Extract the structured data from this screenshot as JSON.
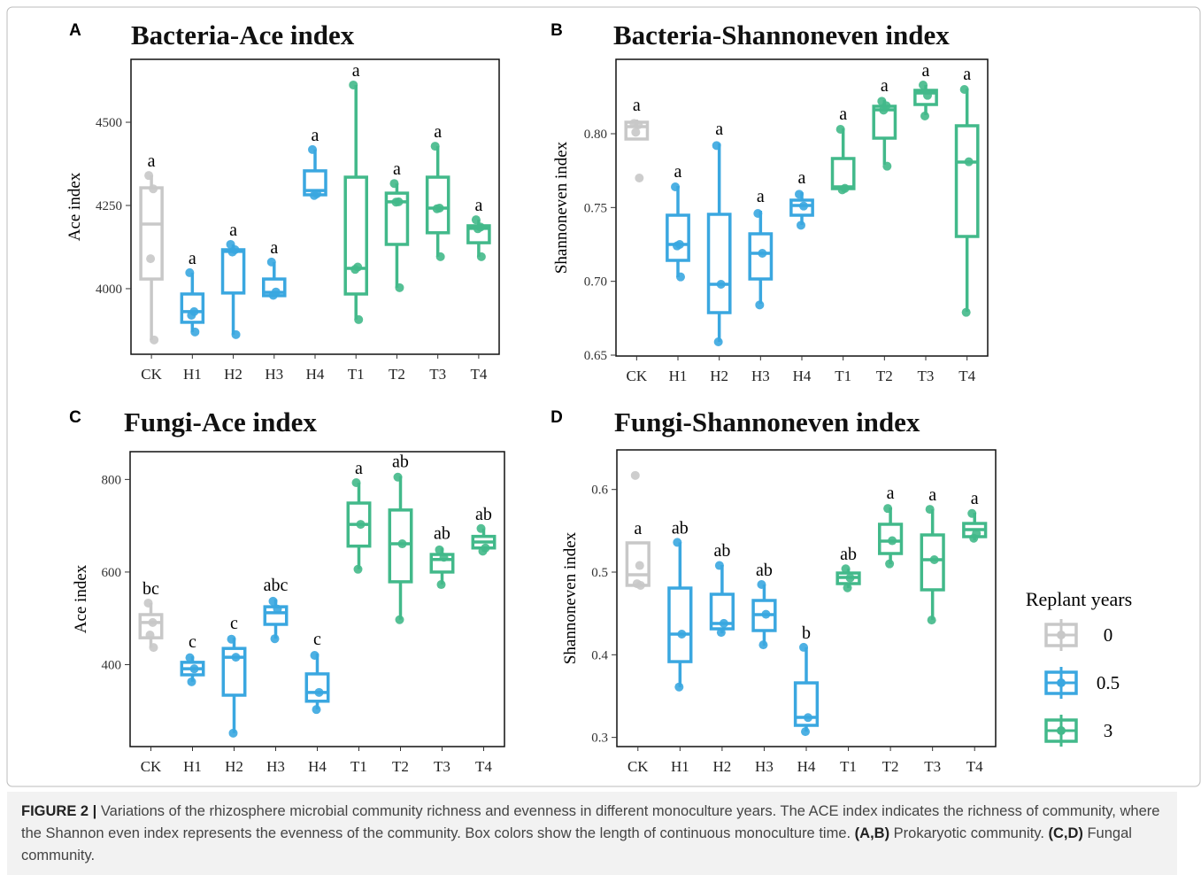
{
  "chart_data": [
    {
      "type": "box",
      "panel_label": "A",
      "title": "Bacteria-Ace index",
      "ylabel": "Ace index",
      "categories": [
        "CK",
        "H1",
        "H2",
        "H3",
        "H4",
        "T1",
        "T2",
        "T3",
        "T4"
      ],
      "colors": [
        "#c8c8c8",
        "#3aa7e0",
        "#3aa7e0",
        "#3aa7e0",
        "#3aa7e0",
        "#42b98a",
        "#42b98a",
        "#42b98a",
        "#42b98a"
      ],
      "boxes": [
        {
          "min": 3846,
          "q1": 4029,
          "median": 4194,
          "q3": 4303,
          "max": 4340,
          "points": [
            4340,
            4300,
            4090,
            3846
          ],
          "letter": "a"
        },
        {
          "min": 3870,
          "q1": 3899,
          "median": 3931,
          "q3": 3984,
          "max": 4048,
          "points": [
            4048,
            3931,
            3920,
            3870
          ],
          "letter": "a"
        },
        {
          "min": 3862,
          "q1": 3987,
          "median": 4112,
          "q3": 4117,
          "max": 4133,
          "points": [
            4133,
            4117,
            4110,
            3862
          ],
          "letter": "a"
        },
        {
          "min": 3979,
          "q1": 3979,
          "median": 3989,
          "q3": 4029,
          "max": 4080,
          "points": [
            4080,
            3990,
            3980
          ],
          "letter": "a"
        },
        {
          "min": 4282,
          "q1": 4282,
          "median": 4295,
          "q3": 4354,
          "max": 4418,
          "points": [
            4418,
            4285,
            4280
          ],
          "letter": "a"
        },
        {
          "min": 3907,
          "q1": 3984,
          "median": 4061,
          "q3": 4335,
          "max": 4612,
          "points": [
            4612,
            4065,
            4058,
            3907
          ],
          "letter": "a"
        },
        {
          "min": 4003,
          "q1": 4133,
          "median": 4261,
          "q3": 4287,
          "max": 4316,
          "points": [
            4316,
            4261,
            4260,
            4003
          ],
          "letter": "a"
        },
        {
          "min": 4096,
          "q1": 4168,
          "median": 4242,
          "q3": 4335,
          "max": 4428,
          "points": [
            4428,
            4242,
            4240,
            4096
          ],
          "letter": "a"
        },
        {
          "min": 4096,
          "q1": 4138,
          "median": 4181,
          "q3": 4189,
          "max": 4207,
          "points": [
            4207,
            4185,
            4180,
            4096
          ],
          "letter": "a"
        }
      ],
      "ylim": [
        3803,
        4689
      ],
      "yticks": [
        4000,
        4250,
        4500
      ]
    },
    {
      "type": "box",
      "panel_label": "B",
      "title": "Bacteria-Shannoneven index",
      "ylabel": "Shannoneven index",
      "categories": [
        "CK",
        "H1",
        "H2",
        "H3",
        "H4",
        "T1",
        "T2",
        "T3",
        "T4"
      ],
      "colors": [
        "#c8c8c8",
        "#3aa7e0",
        "#3aa7e0",
        "#3aa7e0",
        "#3aa7e0",
        "#42b98a",
        "#42b98a",
        "#42b98a",
        "#42b98a"
      ],
      "boxes": [
        {
          "min": 0.7964,
          "q1": 0.7964,
          "median": 0.8048,
          "q3": 0.8078,
          "max": 0.8096,
          "points": [
            0.807,
            0.806,
            0.801,
            0.77
          ],
          "letter": "a"
        },
        {
          "min": 0.7028,
          "q1": 0.7142,
          "median": 0.725,
          "q3": 0.7448,
          "max": 0.7646,
          "points": [
            0.764,
            0.725,
            0.724,
            0.703
          ],
          "letter": "a"
        },
        {
          "min": 0.659,
          "q1": 0.6788,
          "median": 0.698,
          "q3": 0.7454,
          "max": 0.7934,
          "points": [
            0.792,
            0.698,
            0.659
          ],
          "letter": "a"
        },
        {
          "min": 0.6848,
          "q1": 0.7016,
          "median": 0.719,
          "q3": 0.7322,
          "max": 0.7478,
          "points": [
            0.746,
            0.719,
            0.684
          ],
          "letter": "a"
        },
        {
          "min": 0.7382,
          "q1": 0.7448,
          "median": 0.7514,
          "q3": 0.755,
          "max": 0.7604,
          "points": [
            0.759,
            0.751,
            0.738
          ],
          "letter": "a"
        },
        {
          "min": 0.7628,
          "q1": 0.7628,
          "median": 0.764,
          "q3": 0.7832,
          "max": 0.8036,
          "points": [
            0.803,
            0.763,
            0.762
          ],
          "letter": "a"
        },
        {
          "min": 0.779,
          "q1": 0.797,
          "median": 0.8162,
          "q3": 0.8186,
          "max": 0.8228,
          "points": [
            0.822,
            0.819,
            0.816,
            0.778
          ],
          "letter": "a"
        },
        {
          "min": 0.8126,
          "q1": 0.8198,
          "median": 0.8276,
          "q3": 0.8294,
          "max": 0.833,
          "points": [
            0.833,
            0.826,
            0.812
          ],
          "letter": "a"
        },
        {
          "min": 0.6794,
          "q1": 0.7304,
          "median": 0.7808,
          "q3": 0.8054,
          "max": 0.8306,
          "points": [
            0.83,
            0.781,
            0.679
          ],
          "letter": "a"
        }
      ],
      "ylim": [
        0.6494,
        0.8504
      ],
      "yticks": [
        {
          "value": 0.65,
          "label": "0.65"
        },
        {
          "value": 0.7,
          "label": "0.70"
        },
        {
          "value": 0.75,
          "label": "0.75"
        },
        {
          "value": 0.8,
          "label": "0.80"
        }
      ]
    },
    {
      "type": "box",
      "panel_label": "C",
      "title": "Fungi-Ace index",
      "ylabel": "Ace index",
      "categories": [
        "CK",
        "H1",
        "H2",
        "H3",
        "H4",
        "T1",
        "T2",
        "T3",
        "T4"
      ],
      "colors": [
        "#c8c8c8",
        "#3aa7e0",
        "#3aa7e0",
        "#3aa7e0",
        "#3aa7e0",
        "#42b98a",
        "#42b98a",
        "#42b98a",
        "#42b98a"
      ],
      "boxes": [
        {
          "min": 437,
          "q1": 458,
          "median": 491,
          "q3": 508,
          "max": 533,
          "points": [
            533,
            491,
            464,
            437
          ],
          "letter": "bc"
        },
        {
          "min": 363,
          "q1": 378,
          "median": 391,
          "q3": 405,
          "max": 418,
          "points": [
            415,
            391,
            363
          ],
          "letter": "c"
        },
        {
          "min": 252,
          "q1": 334,
          "median": 416,
          "q3": 435,
          "max": 458,
          "points": [
            455,
            416,
            252
          ],
          "letter": "c"
        },
        {
          "min": 456,
          "q1": 487,
          "median": 512,
          "q3": 525,
          "max": 541,
          "points": [
            537,
            520,
            456
          ],
          "letter": "abc"
        },
        {
          "min": 303,
          "q1": 321,
          "median": 340,
          "q3": 380,
          "max": 424,
          "points": [
            420,
            340,
            303
          ],
          "letter": "c"
        },
        {
          "min": 606,
          "q1": 656,
          "median": 703,
          "q3": 749,
          "max": 793,
          "points": [
            793,
            703,
            606
          ],
          "letter": "a"
        },
        {
          "min": 497,
          "q1": 579,
          "median": 661,
          "q3": 734,
          "max": 807,
          "points": [
            805,
            661,
            497
          ],
          "letter": "ab"
        },
        {
          "min": 573,
          "q1": 600,
          "median": 627,
          "q3": 638,
          "max": 652,
          "points": [
            648,
            632,
            573
          ],
          "letter": "ab"
        },
        {
          "min": 644,
          "q1": 652,
          "median": 665,
          "q3": 677,
          "max": 694,
          "points": [
            694,
            652,
            645
          ],
          "letter": "ab"
        }
      ],
      "ylim": [
        223,
        860
      ],
      "yticks": [
        400,
        600,
        800
      ]
    },
    {
      "type": "box",
      "panel_label": "D",
      "title": "Fungi-Shannoneven index",
      "ylabel": "Shannoneven index",
      "categories": [
        "CK",
        "H1",
        "H2",
        "H3",
        "H4",
        "T1",
        "T2",
        "T3",
        "T4"
      ],
      "colors": [
        "#c8c8c8",
        "#3aa7e0",
        "#3aa7e0",
        "#3aa7e0",
        "#3aa7e0",
        "#42b98a",
        "#42b98a",
        "#42b98a",
        "#42b98a"
      ],
      "boxes": [
        {
          "min": 0.484,
          "q1": 0.484,
          "median": 0.4968,
          "q3": 0.5354,
          "max": 0.5354,
          "points": [
            0.617,
            0.508,
            0.486,
            0.484
          ],
          "letter": "a"
        },
        {
          "min": 0.3607,
          "q1": 0.3917,
          "median": 0.425,
          "q3": 0.4807,
          "max": 0.536,
          "points": [
            0.536,
            0.425,
            0.361
          ],
          "letter": "ab"
        },
        {
          "min": 0.426,
          "q1": 0.4314,
          "median": 0.4378,
          "q3": 0.4732,
          "max": 0.5086,
          "points": [
            0.508,
            0.438,
            0.427
          ],
          "letter": "ab"
        },
        {
          "min": 0.411,
          "q1": 0.4293,
          "median": 0.4486,
          "q3": 0.4657,
          "max": 0.485,
          "points": [
            0.485,
            0.449,
            0.412
          ],
          "letter": "ab"
        },
        {
          "min": 0.3071,
          "q1": 0.3146,
          "median": 0.3242,
          "q3": 0.366,
          "max": 0.4089,
          "points": [
            0.409,
            0.324,
            0.307
          ],
          "letter": "b"
        },
        {
          "min": 0.4807,
          "q1": 0.4861,
          "median": 0.4936,
          "q3": 0.4989,
          "max": 0.5043,
          "points": [
            0.504,
            0.493,
            0.481
          ],
          "letter": "ab"
        },
        {
          "min": 0.5096,
          "q1": 0.5225,
          "median": 0.5375,
          "q3": 0.5579,
          "max": 0.5782,
          "points": [
            0.577,
            0.538,
            0.51
          ],
          "letter": "a"
        },
        {
          "min": 0.4421,
          "q1": 0.4786,
          "median": 0.515,
          "q3": 0.545,
          "max": 0.576,
          "points": [
            0.576,
            0.515,
            0.442
          ],
          "letter": "a"
        },
        {
          "min": 0.5386,
          "q1": 0.5429,
          "median": 0.5514,
          "q3": 0.5589,
          "max": 0.5718,
          "points": [
            0.571,
            0.547,
            0.541
          ],
          "letter": "a"
        }
      ],
      "ylim": [
        0.2889,
        0.6479
      ],
      "yticks": [
        0.3,
        0.4,
        0.5,
        0.6
      ]
    }
  ],
  "legend": {
    "title": "Replant years",
    "items": [
      {
        "label": "0",
        "color": "#c8c8c8"
      },
      {
        "label": "0.5",
        "color": "#3aa7e0"
      },
      {
        "label": "3",
        "color": "#42b98a"
      }
    ]
  },
  "caption": {
    "label": "FIGURE 2 |",
    "text": " Variations of the rhizosphere microbial community richness and evenness in different monoculture years. The ACE index indicates the richness of community, where the Shannon even index represents the evenness of the community. Box colors show the length of continuous monoculture time. ",
    "ref1": "(A,B)",
    "text2": " Prokaryotic community. ",
    "ref2": "(C,D)",
    "text3": " Fungal community."
  }
}
